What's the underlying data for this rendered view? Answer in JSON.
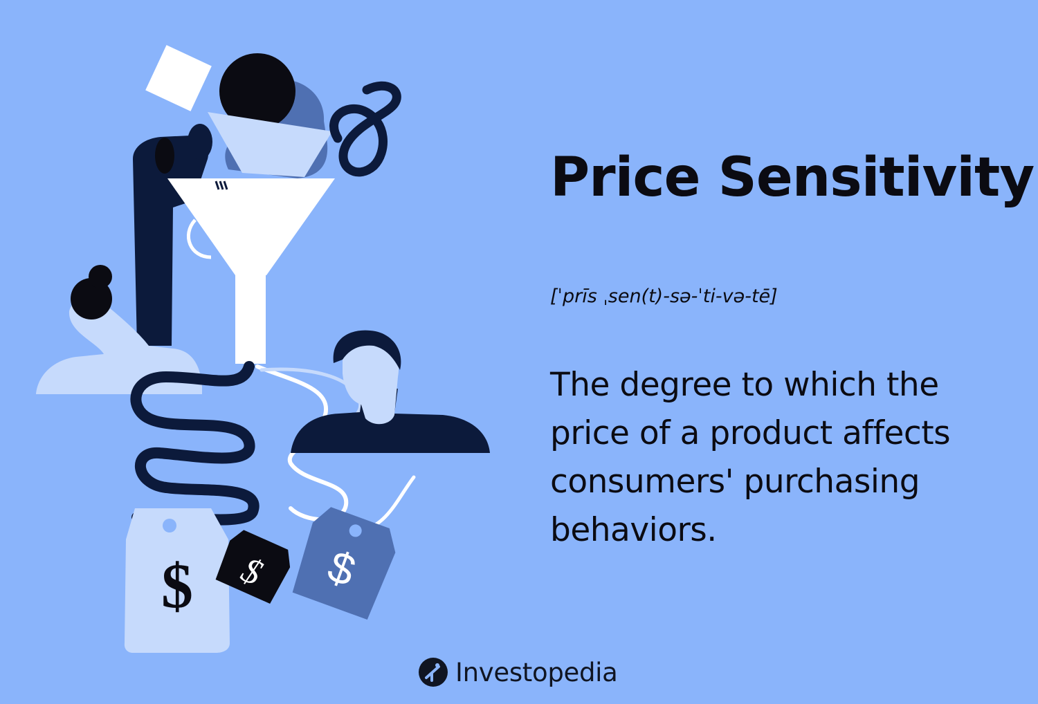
{
  "heading": {
    "title": "Price Sensitivity",
    "pronunciation": "[ˈprīs ˌsen(t)-sə-ˈti-və-tē]",
    "definition": "The degree to which the price of a product affects consumers' purchasing behaviors."
  },
  "illustration": {
    "price_tag_symbol": "$"
  },
  "brand": {
    "name": "Investopedia",
    "logo_icon": "investopedia-logo-icon"
  },
  "colors": {
    "background": "#8ab4fb",
    "navy": "#0c1a3b",
    "light_blue": "#c6dafc",
    "mid_blue": "#4f70b2",
    "black": "#0b0b12",
    "white": "#ffffff"
  }
}
